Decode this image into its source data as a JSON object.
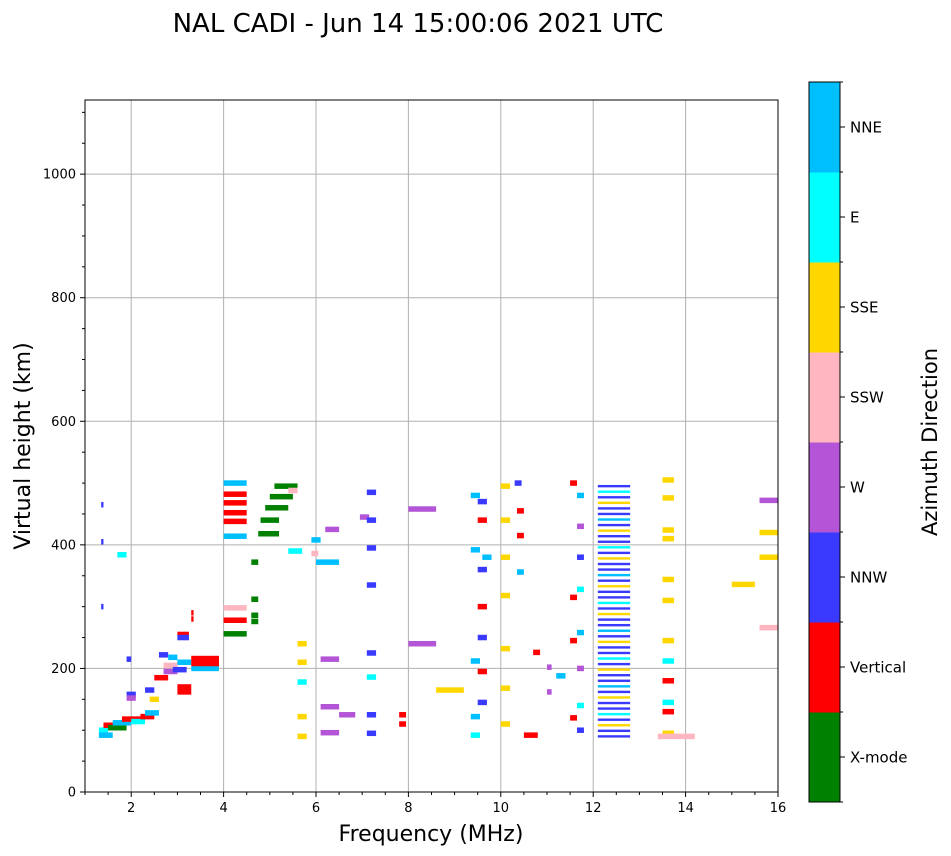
{
  "chart_data": {
    "type": "scatter",
    "title": "NAL CADI - Jun 14 15:00:06 2021 UTC",
    "xlabel": "Frequency (MHz)",
    "ylabel": "Virtual height (km)",
    "xlim": [
      1,
      16
    ],
    "ylim": [
      0,
      1120
    ],
    "xticks": [
      2,
      4,
      6,
      8,
      10,
      12,
      14,
      16
    ],
    "yticks": [
      0,
      200,
      400,
      600,
      800,
      1000
    ],
    "grid": true,
    "colorbar": {
      "label": "Azimuth Direction",
      "categories": [
        {
          "name": "X-mode",
          "color": "#008000"
        },
        {
          "name": "Vertical",
          "color": "#ff0000"
        },
        {
          "name": "NNW",
          "color": "#3a3aff"
        },
        {
          "name": "W",
          "color": "#b455d8"
        },
        {
          "name": "SSW",
          "color": "#ffb6c1"
        },
        {
          "name": "SSE",
          "color": "#ffd700"
        },
        {
          "name": "E",
          "color": "#00ffff"
        },
        {
          "name": "NNE",
          "color": "#00bfff"
        }
      ]
    },
    "echoes": [
      {
        "f0": 1.3,
        "f1": 1.5,
        "h": 100,
        "c": "E"
      },
      {
        "f0": 1.3,
        "f1": 1.6,
        "h": 92,
        "c": "NNE"
      },
      {
        "f0": 1.4,
        "f1": 1.8,
        "h": 108,
        "c": "Vertical"
      },
      {
        "f0": 1.5,
        "f1": 1.9,
        "h": 104,
        "c": "X-mode"
      },
      {
        "f0": 1.6,
        "f1": 2.0,
        "h": 112,
        "c": "NNE"
      },
      {
        "f0": 1.7,
        "f1": 1.9,
        "h": 384,
        "c": "E"
      },
      {
        "f0": 1.35,
        "f1": 1.4,
        "h": 465,
        "c": "NNW"
      },
      {
        "f0": 1.35,
        "f1": 1.4,
        "h": 405,
        "c": "NNW"
      },
      {
        "f0": 1.35,
        "f1": 1.4,
        "h": 300,
        "c": "NNW"
      },
      {
        "f0": 1.9,
        "f1": 2.0,
        "h": 215,
        "c": "NNW"
      },
      {
        "f0": 1.9,
        "f1": 2.1,
        "h": 158,
        "c": "NNW"
      },
      {
        "f0": 1.9,
        "f1": 2.1,
        "h": 152,
        "c": "W"
      },
      {
        "f0": 1.8,
        "f1": 2.3,
        "h": 118,
        "c": "Vertical"
      },
      {
        "f0": 2.0,
        "f1": 2.3,
        "h": 114,
        "c": "E"
      },
      {
        "f0": 2.2,
        "f1": 2.5,
        "h": 122,
        "c": "Vertical"
      },
      {
        "f0": 2.3,
        "f1": 2.5,
        "h": 165,
        "c": "NNW"
      },
      {
        "f0": 2.3,
        "f1": 2.6,
        "h": 128,
        "c": "NNE"
      },
      {
        "f0": 2.4,
        "f1": 2.6,
        "h": 150,
        "c": "SSE"
      },
      {
        "f0": 2.5,
        "f1": 2.8,
        "h": 185,
        "c": "Vertical"
      },
      {
        "f0": 2.6,
        "f1": 2.8,
        "h": 222,
        "c": "NNW"
      },
      {
        "f0": 2.7,
        "f1": 3.0,
        "h": 195,
        "c": "W"
      },
      {
        "f0": 2.7,
        "f1": 3.0,
        "h": 205,
        "c": "SSW"
      },
      {
        "f0": 2.8,
        "f1": 3.0,
        "h": 218,
        "c": "NNE"
      },
      {
        "f0": 2.9,
        "f1": 3.2,
        "h": 198,
        "c": "NNW"
      },
      {
        "f0": 3.0,
        "f1": 3.3,
        "h": 170,
        "c": "Vertical"
      },
      {
        "f0": 3.0,
        "f1": 3.3,
        "h": 162,
        "c": "Vertical"
      },
      {
        "f0": 3.0,
        "f1": 3.3,
        "h": 210,
        "c": "NNE"
      },
      {
        "f0": 3.0,
        "f1": 3.25,
        "h": 255,
        "c": "Vertical"
      },
      {
        "f0": 3.0,
        "f1": 3.25,
        "h": 250,
        "c": "NNW"
      },
      {
        "f0": 3.3,
        "f1": 3.35,
        "h": 280,
        "c": "Vertical"
      },
      {
        "f0": 3.3,
        "f1": 3.35,
        "h": 290,
        "c": "Vertical"
      },
      {
        "f0": 3.3,
        "f1": 3.9,
        "h": 200,
        "c": "NNE"
      },
      {
        "f0": 3.3,
        "f1": 3.9,
        "h": 208,
        "c": "Vertical"
      },
      {
        "f0": 3.3,
        "f1": 3.9,
        "h": 216,
        "c": "Vertical"
      },
      {
        "f0": 4.0,
        "f1": 4.5,
        "h": 500,
        "c": "NNE"
      },
      {
        "f0": 4.0,
        "f1": 4.5,
        "h": 482,
        "c": "Vertical"
      },
      {
        "f0": 4.0,
        "f1": 4.5,
        "h": 468,
        "c": "Vertical"
      },
      {
        "f0": 4.0,
        "f1": 4.5,
        "h": 452,
        "c": "Vertical"
      },
      {
        "f0": 4.0,
        "f1": 4.5,
        "h": 438,
        "c": "Vertical"
      },
      {
        "f0": 4.0,
        "f1": 4.5,
        "h": 414,
        "c": "NNE"
      },
      {
        "f0": 4.0,
        "f1": 4.5,
        "h": 298,
        "c": "SSW"
      },
      {
        "f0": 4.0,
        "f1": 4.5,
        "h": 278,
        "c": "Vertical"
      },
      {
        "f0": 4.0,
        "f1": 4.5,
        "h": 256,
        "c": "X-mode"
      },
      {
        "f0": 4.6,
        "f1": 4.75,
        "h": 372,
        "c": "X-mode"
      },
      {
        "f0": 4.6,
        "f1": 4.75,
        "h": 312,
        "c": "X-mode"
      },
      {
        "f0": 4.6,
        "f1": 4.75,
        "h": 286,
        "c": "X-mode"
      },
      {
        "f0": 4.6,
        "f1": 4.75,
        "h": 276,
        "c": "X-mode"
      },
      {
        "f0": 4.75,
        "f1": 5.2,
        "h": 418,
        "c": "X-mode"
      },
      {
        "f0": 4.8,
        "f1": 5.2,
        "h": 440,
        "c": "X-mode"
      },
      {
        "f0": 4.9,
        "f1": 5.4,
        "h": 460,
        "c": "X-mode"
      },
      {
        "f0": 5.0,
        "f1": 5.5,
        "h": 478,
        "c": "X-mode"
      },
      {
        "f0": 5.1,
        "f1": 5.6,
        "h": 495,
        "c": "X-mode"
      },
      {
        "f0": 5.4,
        "f1": 5.6,
        "h": 488,
        "c": "SSW"
      },
      {
        "f0": 5.4,
        "f1": 5.7,
        "h": 390,
        "c": "E"
      },
      {
        "f0": 5.9,
        "f1": 6.1,
        "h": 408,
        "c": "NNE"
      },
      {
        "f0": 5.9,
        "f1": 6.05,
        "h": 386,
        "c": "SSW"
      },
      {
        "f0": 6.0,
        "f1": 6.5,
        "h": 372,
        "c": "NNE"
      },
      {
        "f0": 6.2,
        "f1": 6.5,
        "h": 425,
        "c": "W"
      },
      {
        "f0": 6.1,
        "f1": 6.5,
        "h": 215,
        "c": "W"
      },
      {
        "f0": 6.1,
        "f1": 6.5,
        "h": 138,
        "c": "W"
      },
      {
        "f0": 6.1,
        "f1": 6.5,
        "h": 96,
        "c": "W"
      },
      {
        "f0": 6.5,
        "f1": 6.85,
        "h": 125,
        "c": "W"
      },
      {
        "f0": 5.6,
        "f1": 5.8,
        "h": 240,
        "c": "SSE"
      },
      {
        "f0": 5.6,
        "f1": 5.8,
        "h": 210,
        "c": "SSE"
      },
      {
        "f0": 5.6,
        "f1": 5.8,
        "h": 178,
        "c": "E"
      },
      {
        "f0": 5.6,
        "f1": 5.8,
        "h": 122,
        "c": "SSE"
      },
      {
        "f0": 5.6,
        "f1": 5.8,
        "h": 90,
        "c": "SSE"
      },
      {
        "f0": 6.95,
        "f1": 7.15,
        "h": 445,
        "c": "W"
      },
      {
        "f0": 7.1,
        "f1": 7.3,
        "h": 485,
        "c": "NNW"
      },
      {
        "f0": 7.1,
        "f1": 7.3,
        "h": 440,
        "c": "NNW"
      },
      {
        "f0": 7.1,
        "f1": 7.3,
        "h": 395,
        "c": "NNW"
      },
      {
        "f0": 7.1,
        "f1": 7.3,
        "h": 335,
        "c": "NNW"
      },
      {
        "f0": 7.1,
        "f1": 7.3,
        "h": 225,
        "c": "NNW"
      },
      {
        "f0": 7.1,
        "f1": 7.3,
        "h": 186,
        "c": "E"
      },
      {
        "f0": 7.1,
        "f1": 7.3,
        "h": 125,
        "c": "NNW"
      },
      {
        "f0": 7.1,
        "f1": 7.3,
        "h": 95,
        "c": "NNW"
      },
      {
        "f0": 7.8,
        "f1": 7.95,
        "h": 125,
        "c": "Vertical"
      },
      {
        "f0": 7.8,
        "f1": 7.95,
        "h": 110,
        "c": "Vertical"
      },
      {
        "f0": 8.0,
        "f1": 8.6,
        "h": 458,
        "c": "W"
      },
      {
        "f0": 8.0,
        "f1": 8.6,
        "h": 240,
        "c": "W"
      },
      {
        "f0": 8.6,
        "f1": 9.2,
        "h": 165,
        "c": "SSE"
      },
      {
        "f0": 9.35,
        "f1": 9.55,
        "h": 480,
        "c": "NNE"
      },
      {
        "f0": 9.35,
        "f1": 9.55,
        "h": 392,
        "c": "NNE"
      },
      {
        "f0": 9.35,
        "f1": 9.55,
        "h": 212,
        "c": "NNE"
      },
      {
        "f0": 9.35,
        "f1": 9.55,
        "h": 122,
        "c": "NNE"
      },
      {
        "f0": 9.35,
        "f1": 9.55,
        "h": 92,
        "c": "E"
      },
      {
        "f0": 9.5,
        "f1": 9.7,
        "h": 470,
        "c": "NNW"
      },
      {
        "f0": 9.5,
        "f1": 9.7,
        "h": 440,
        "c": "Vertical"
      },
      {
        "f0": 9.5,
        "f1": 9.7,
        "h": 360,
        "c": "NNW"
      },
      {
        "f0": 9.5,
        "f1": 9.7,
        "h": 300,
        "c": "Vertical"
      },
      {
        "f0": 9.5,
        "f1": 9.7,
        "h": 250,
        "c": "NNW"
      },
      {
        "f0": 9.5,
        "f1": 9.7,
        "h": 195,
        "c": "Vertical"
      },
      {
        "f0": 9.5,
        "f1": 9.7,
        "h": 145,
        "c": "NNW"
      },
      {
        "f0": 9.6,
        "f1": 9.8,
        "h": 380,
        "c": "NNE"
      },
      {
        "f0": 10.0,
        "f1": 10.2,
        "h": 495,
        "c": "SSE"
      },
      {
        "f0": 10.0,
        "f1": 10.2,
        "h": 440,
        "c": "SSE"
      },
      {
        "f0": 10.0,
        "f1": 10.2,
        "h": 380,
        "c": "SSE"
      },
      {
        "f0": 10.0,
        "f1": 10.2,
        "h": 318,
        "c": "SSE"
      },
      {
        "f0": 10.0,
        "f1": 10.2,
        "h": 232,
        "c": "SSE"
      },
      {
        "f0": 10.0,
        "f1": 10.2,
        "h": 168,
        "c": "SSE"
      },
      {
        "f0": 10.0,
        "f1": 10.2,
        "h": 110,
        "c": "SSE"
      },
      {
        "f0": 10.3,
        "f1": 10.45,
        "h": 500,
        "c": "NNW"
      },
      {
        "f0": 10.35,
        "f1": 10.5,
        "h": 455,
        "c": "Vertical"
      },
      {
        "f0": 10.35,
        "f1": 10.5,
        "h": 415,
        "c": "Vertical"
      },
      {
        "f0": 10.35,
        "f1": 10.5,
        "h": 356,
        "c": "NNE"
      },
      {
        "f0": 10.5,
        "f1": 10.8,
        "h": 92,
        "c": "Vertical"
      },
      {
        "f0": 10.7,
        "f1": 10.85,
        "h": 226,
        "c": "Vertical"
      },
      {
        "f0": 11.0,
        "f1": 11.1,
        "h": 202,
        "c": "W"
      },
      {
        "f0": 11.0,
        "f1": 11.1,
        "h": 162,
        "c": "W"
      },
      {
        "f0": 11.2,
        "f1": 11.4,
        "h": 188,
        "c": "NNE"
      },
      {
        "f0": 11.5,
        "f1": 11.65,
        "h": 500,
        "c": "Vertical"
      },
      {
        "f0": 11.5,
        "f1": 11.65,
        "h": 315,
        "c": "Vertical"
      },
      {
        "f0": 11.5,
        "f1": 11.65,
        "h": 245,
        "c": "Vertical"
      },
      {
        "f0": 11.5,
        "f1": 11.65,
        "h": 120,
        "c": "Vertical"
      },
      {
        "f0": 11.65,
        "f1": 11.8,
        "h": 480,
        "c": "NNE"
      },
      {
        "f0": 11.65,
        "f1": 11.8,
        "h": 430,
        "c": "W"
      },
      {
        "f0": 11.65,
        "f1": 11.8,
        "h": 380,
        "c": "NNW"
      },
      {
        "f0": 11.65,
        "f1": 11.8,
        "h": 328,
        "c": "E"
      },
      {
        "f0": 11.65,
        "f1": 11.8,
        "h": 258,
        "c": "NNE"
      },
      {
        "f0": 11.65,
        "f1": 11.8,
        "h": 200,
        "c": "W"
      },
      {
        "f0": 11.65,
        "f1": 11.8,
        "h": 140,
        "c": "E"
      },
      {
        "f0": 11.65,
        "f1": 11.8,
        "h": 100,
        "c": "NNW"
      },
      {
        "f0": 13.5,
        "f1": 13.75,
        "h": 505,
        "c": "SSE"
      },
      {
        "f0": 13.5,
        "f1": 13.75,
        "h": 476,
        "c": "SSE"
      },
      {
        "f0": 13.5,
        "f1": 13.75,
        "h": 424,
        "c": "SSE"
      },
      {
        "f0": 13.5,
        "f1": 13.75,
        "h": 410,
        "c": "SSE"
      },
      {
        "f0": 13.5,
        "f1": 13.75,
        "h": 344,
        "c": "SSE"
      },
      {
        "f0": 13.5,
        "f1": 13.75,
        "h": 310,
        "c": "SSE"
      },
      {
        "f0": 13.5,
        "f1": 13.75,
        "h": 245,
        "c": "SSE"
      },
      {
        "f0": 13.5,
        "f1": 13.75,
        "h": 212,
        "c": "E"
      },
      {
        "f0": 13.5,
        "f1": 13.75,
        "h": 180,
        "c": "Vertical"
      },
      {
        "f0": 13.5,
        "f1": 13.75,
        "h": 145,
        "c": "E"
      },
      {
        "f0": 13.5,
        "f1": 13.75,
        "h": 130,
        "c": "Vertical"
      },
      {
        "f0": 13.5,
        "f1": 13.75,
        "h": 95,
        "c": "SSE"
      },
      {
        "f0": 13.4,
        "f1": 14.2,
        "h": 90,
        "c": "SSW"
      },
      {
        "f0": 15.0,
        "f1": 15.5,
        "h": 336,
        "c": "SSE"
      },
      {
        "f0": 15.6,
        "f1": 16.0,
        "h": 472,
        "c": "W"
      },
      {
        "f0": 15.6,
        "f1": 16.0,
        "h": 420,
        "c": "SSE"
      },
      {
        "f0": 15.6,
        "f1": 16.0,
        "h": 380,
        "c": "SSE"
      },
      {
        "f0": 15.6,
        "f1": 16.0,
        "h": 266,
        "c": "SSW"
      }
    ],
    "stack": {
      "f0": 12.1,
      "f1": 12.8,
      "h0": 90,
      "h1": 502,
      "step": 9,
      "cycle": [
        "NNW",
        "NNW",
        "SSE",
        "NNW",
        "E",
        "NNW",
        "NNW",
        "SSE",
        "NNW",
        "NNE"
      ]
    }
  }
}
